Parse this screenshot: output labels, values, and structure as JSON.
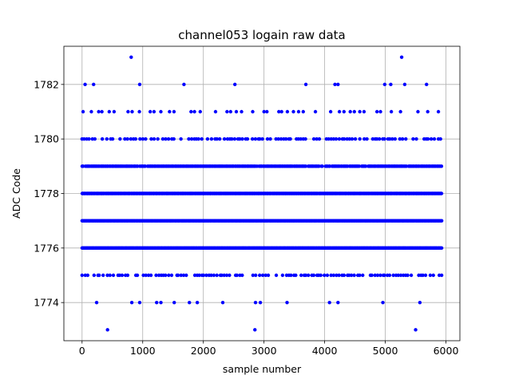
{
  "chart_data": {
    "type": "scatter",
    "title": "channel053 logain raw data",
    "xlabel": "sample number",
    "ylabel": "ADC Code",
    "xlim": [
      -300,
      6230
    ],
    "ylim": [
      1772.6,
      1783.4
    ],
    "x_ticks": [
      0,
      1000,
      2000,
      3000,
      4000,
      5000,
      6000
    ],
    "y_ticks": [
      1774,
      1776,
      1778,
      1780,
      1782
    ],
    "x_tick_labels": [
      "0",
      "1000",
      "2000",
      "3000",
      "4000",
      "5000",
      "6000"
    ],
    "y_tick_labels": [
      "1774",
      "1776",
      "1778",
      "1780",
      "1782"
    ],
    "grid": true,
    "marker_color": "#0000ff",
    "x_range": [
      0,
      5930
    ],
    "levels": [
      {
        "value": 1776,
        "density": "continuous"
      },
      {
        "value": 1777,
        "density": "continuous"
      },
      {
        "value": 1778,
        "density": "continuous"
      },
      {
        "value": 1779,
        "density": "dense"
      },
      {
        "value": 1780,
        "density": "moderate"
      },
      {
        "value": 1775,
        "density": "moderate"
      },
      {
        "value": 1781,
        "density": "sparse"
      }
    ],
    "outliers": [
      {
        "x": 50,
        "y": 1782
      },
      {
        "x": 190,
        "y": 1782
      },
      {
        "x": 950,
        "y": 1782
      },
      {
        "x": 1680,
        "y": 1782
      },
      {
        "x": 2520,
        "y": 1782
      },
      {
        "x": 3690,
        "y": 1782
      },
      {
        "x": 4170,
        "y": 1782
      },
      {
        "x": 4220,
        "y": 1782
      },
      {
        "x": 4990,
        "y": 1782
      },
      {
        "x": 5090,
        "y": 1782
      },
      {
        "x": 5320,
        "y": 1782
      },
      {
        "x": 5680,
        "y": 1782
      },
      {
        "x": 810,
        "y": 1783
      },
      {
        "x": 5270,
        "y": 1783
      },
      {
        "x": 240,
        "y": 1774
      },
      {
        "x": 820,
        "y": 1774
      },
      {
        "x": 950,
        "y": 1774
      },
      {
        "x": 1230,
        "y": 1774
      },
      {
        "x": 1300,
        "y": 1774
      },
      {
        "x": 1520,
        "y": 1774
      },
      {
        "x": 1770,
        "y": 1774
      },
      {
        "x": 1900,
        "y": 1774
      },
      {
        "x": 2320,
        "y": 1774
      },
      {
        "x": 2860,
        "y": 1774
      },
      {
        "x": 2940,
        "y": 1774
      },
      {
        "x": 3380,
        "y": 1774
      },
      {
        "x": 4080,
        "y": 1774
      },
      {
        "x": 4220,
        "y": 1774
      },
      {
        "x": 4960,
        "y": 1774
      },
      {
        "x": 5570,
        "y": 1774
      },
      {
        "x": 420,
        "y": 1773
      },
      {
        "x": 2850,
        "y": 1773
      },
      {
        "x": 5500,
        "y": 1773
      }
    ]
  }
}
